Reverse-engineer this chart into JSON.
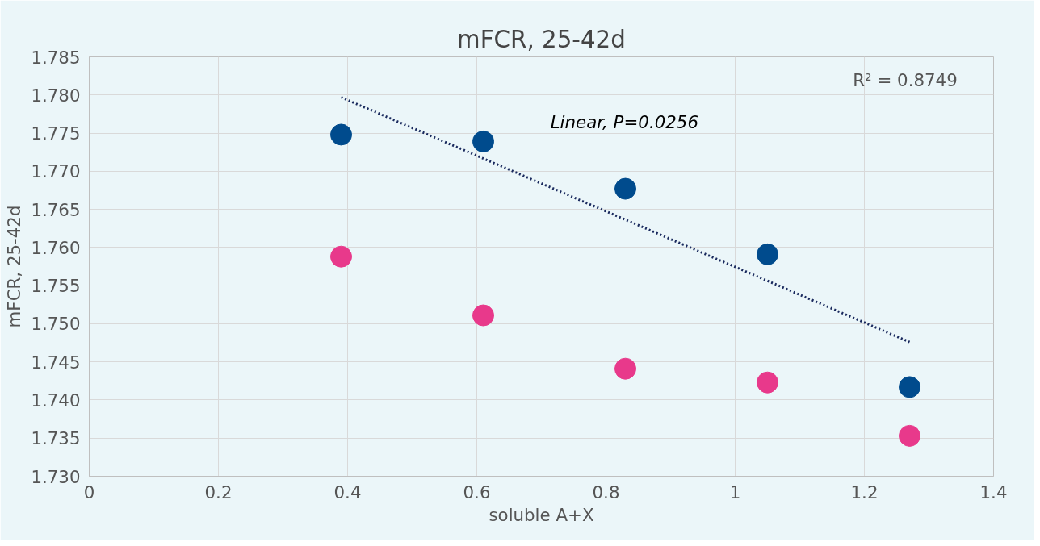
{
  "chart_data": {
    "type": "scatter",
    "title": "mFCR, 25-42d",
    "xlabel": "soluble A+X",
    "ylabel": "mFCR, 25-42d",
    "x": [
      0.39,
      0.61,
      0.83,
      1.05,
      1.27
    ],
    "series": [
      {
        "color": "#004b8d",
        "values": [
          1.7748,
          1.7739,
          1.7677,
          1.7591,
          1.7417
        ]
      },
      {
        "color": "#e8398b",
        "values": [
          1.7588,
          1.7511,
          1.7441,
          1.7423,
          1.7353
        ]
      },
      {
        "type": "line",
        "color": "#1a2a5e",
        "line_style": "dotted",
        "marker": "none",
        "x": [
          0.39,
          1.27
        ],
        "values": [
          1.7797,
          1.7476
        ]
      }
    ],
    "annotations": [
      "R² = 0.8749",
      "Linear, P=0.0256"
    ],
    "xlim": [
      0,
      1.4
    ],
    "xticks": [
      0,
      0.2,
      0.4,
      0.6,
      0.8,
      1,
      1.2,
      1.4
    ],
    "ylim": [
      1.73,
      1.785
    ],
    "yticks": [
      {
        "value": 1.73,
        "label": "1.730"
      },
      {
        "value": 1.735,
        "label": "1.735"
      },
      {
        "value": 1.74,
        "label": "1.740"
      },
      {
        "value": 1.745,
        "label": "1.745"
      },
      {
        "value": 1.75,
        "label": "1.750"
      },
      {
        "value": 1.755,
        "label": "1.755"
      },
      {
        "value": 1.76,
        "label": "1.760"
      },
      {
        "value": 1.765,
        "label": "1.765"
      },
      {
        "value": 1.77,
        "label": "1.770"
      },
      {
        "value": 1.775,
        "label": "1.775"
      },
      {
        "value": 1.78,
        "label": "1.780"
      },
      {
        "value": 1.785,
        "label": "1.785"
      }
    ],
    "grid": true,
    "marker": "circle"
  }
}
